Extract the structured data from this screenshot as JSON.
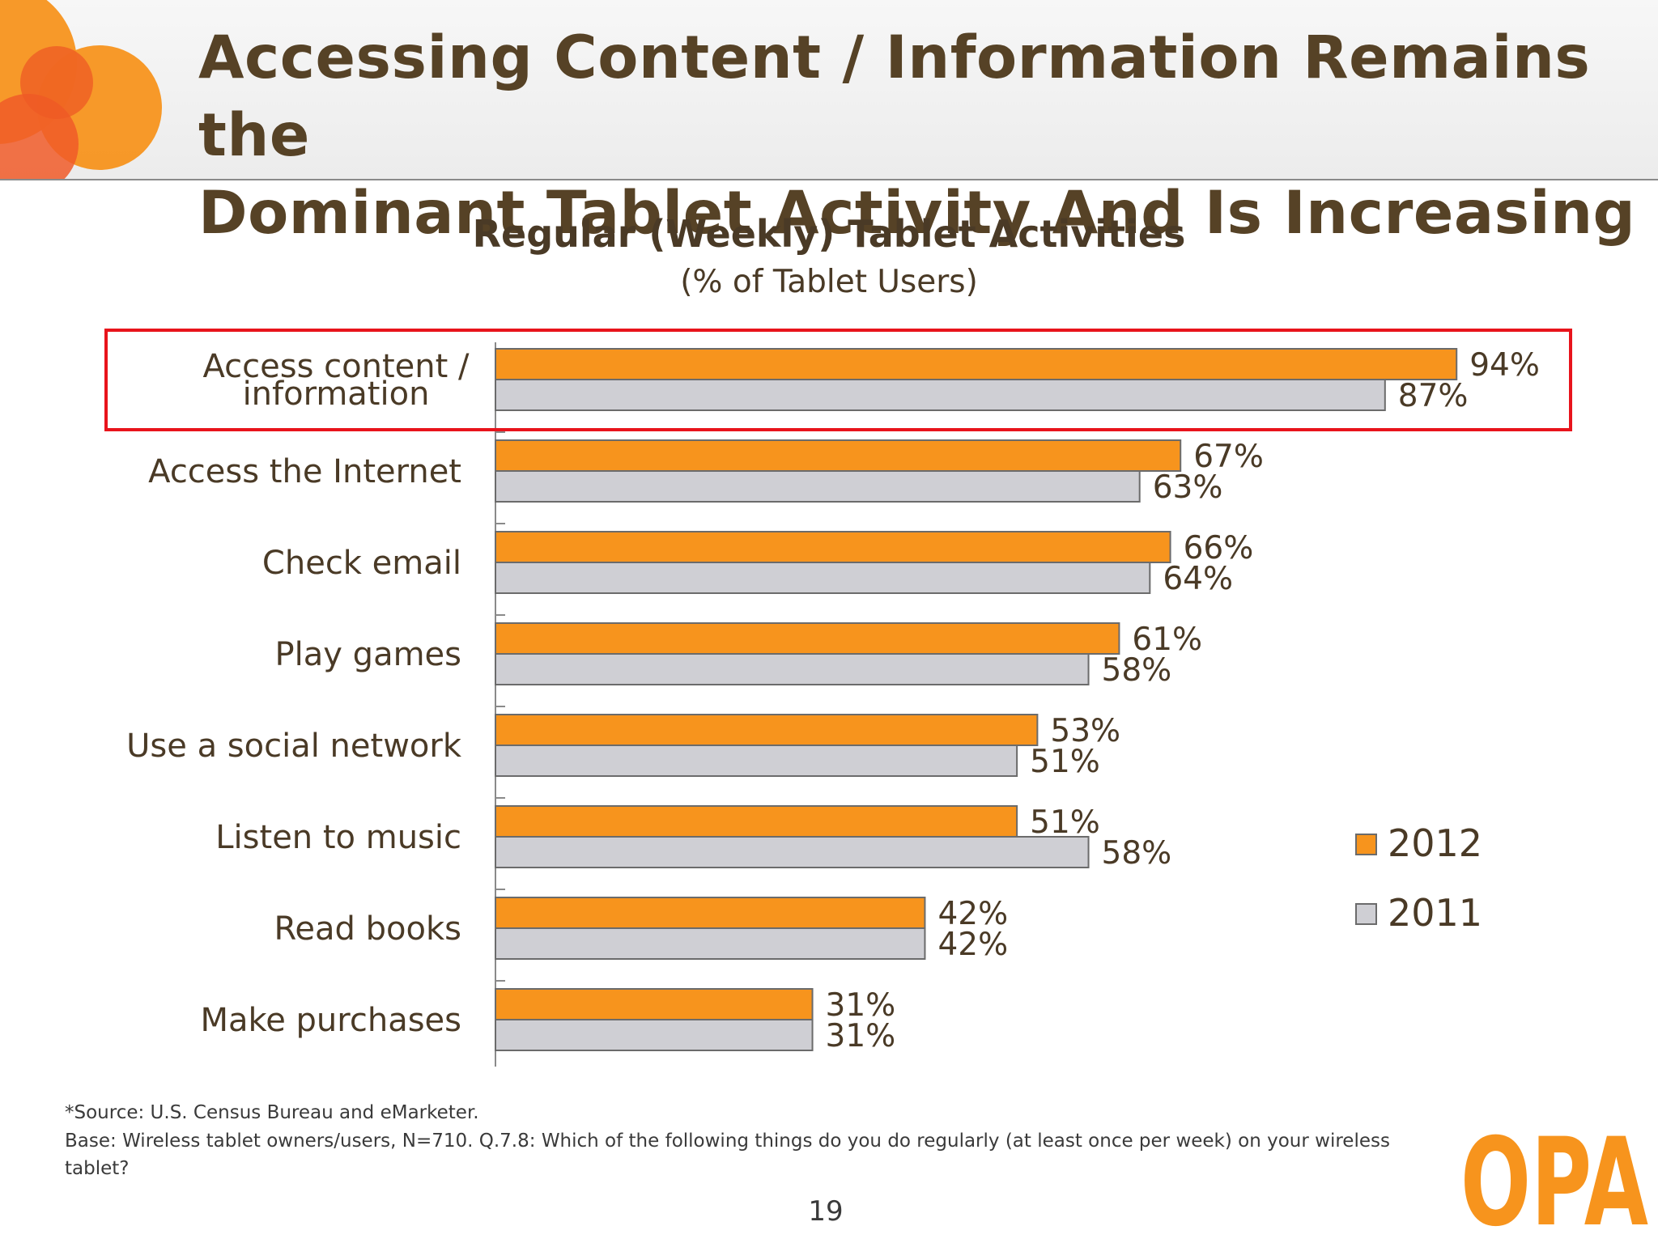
{
  "slide": {
    "title_line1": "Accessing Content / Information Remains the",
    "title_line2": "Dominant Tablet Activity And Is Increasing",
    "page_number": "19",
    "logo_text": "OPA"
  },
  "footnotes": {
    "source": "*Source: U.S. Census Bureau and eMarketer.",
    "base": "Base:   Wireless tablet owners/users, N=710.  Q.7.8:  Which of the following things do you do regularly (at least once per week) on your wireless tablet?"
  },
  "colors": {
    "series_2012": "#f7941d",
    "series_2011": "#cfcfd4",
    "highlight_box": "#e8141c",
    "text": "#4a3a26",
    "title_text": "#564226"
  },
  "chart_data": {
    "type": "bar",
    "orientation": "horizontal",
    "title": "Regular (Weekly) Tablet Activities",
    "subtitle": "(% of Tablet Users)",
    "categories": [
      "Access content / information",
      "Access the Internet",
      "Check email",
      "Play games",
      "Use a social network",
      "Listen to music",
      "Read books",
      "Make purchases"
    ],
    "category_lines": [
      [
        "Access content /",
        "information"
      ],
      [
        "Access the Internet"
      ],
      [
        "Check email"
      ],
      [
        "Play games"
      ],
      [
        "Use a social network"
      ],
      [
        "Listen to music"
      ],
      [
        "Read books"
      ],
      [
        "Make purchases"
      ]
    ],
    "series": [
      {
        "name": "2012",
        "values": [
          94,
          67,
          66,
          61,
          53,
          51,
          42,
          31
        ],
        "labels": [
          "94%",
          "67%",
          "66%",
          "61%",
          "53%",
          "51%",
          "42%",
          "31%"
        ]
      },
      {
        "name": "2011",
        "values": [
          87,
          63,
          64,
          58,
          51,
          58,
          42,
          31
        ],
        "labels": [
          "87%",
          "63%",
          "64%",
          "58%",
          "51%",
          "58%",
          "42%",
          "31%"
        ]
      }
    ],
    "xlim": [
      0,
      100
    ],
    "grid": false,
    "legend_position": "right",
    "highlighted_category": "Access content / information"
  }
}
